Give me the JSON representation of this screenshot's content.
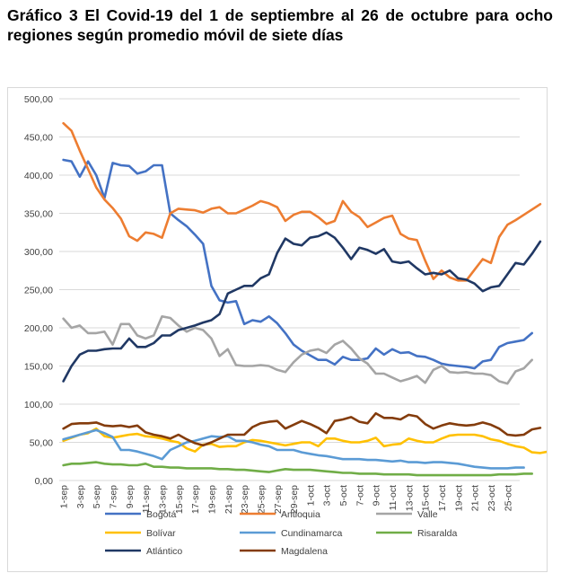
{
  "title": "Gráfico 3 El Covid-19 del 1 de septiembre al 26 de octubre para ocho regiones según promedio móvil de siete días",
  "chart_data": {
    "type": "line",
    "ylim": [
      0,
      500
    ],
    "yticks": [
      "0,00",
      "50,00",
      "100,00",
      "150,00",
      "200,00",
      "250,00",
      "300,00",
      "350,00",
      "400,00",
      "450,00",
      "500,00"
    ],
    "grid": true,
    "legend_position": "bottom",
    "xtick_labels": [
      "1-sep",
      "3-sep",
      "5-sep",
      "7-sep",
      "9-sep",
      "11-sep",
      "13-sep",
      "15-sep",
      "17-sep",
      "19-sep",
      "21-sep",
      "23-sep",
      "25-sep",
      "27-sep",
      "29-sep",
      "1-oct",
      "3-oct",
      "5-oct",
      "7-oct",
      "9-oct",
      "11-oct",
      "13-oct",
      "15-oct",
      "17-oct",
      "19-oct",
      "21-oct",
      "23-oct",
      "25-oct"
    ],
    "series": [
      {
        "name": "Bogotá",
        "color": "#4472c4",
        "values": [
          420,
          418,
          398,
          418,
          400,
          370,
          416,
          413,
          412,
          402,
          405,
          413,
          413,
          350,
          341,
          333,
          322,
          310,
          255,
          236,
          233,
          235,
          205,
          210,
          208,
          215,
          206,
          193,
          178,
          170,
          164,
          158,
          158,
          152,
          162,
          158,
          158,
          160,
          173,
          165,
          172,
          167,
          168,
          163,
          162,
          158,
          153,
          151,
          150,
          149,
          147,
          156,
          158,
          175,
          180,
          182,
          184,
          193
        ]
      },
      {
        "name": "Antioquia",
        "color": "#ed7d31",
        "values": [
          468,
          458,
          432,
          408,
          384,
          368,
          357,
          343,
          320,
          314,
          325,
          323,
          318,
          350,
          356,
          355,
          354,
          351,
          356,
          358,
          350,
          350,
          355,
          360,
          366,
          363,
          358,
          340,
          348,
          352,
          352,
          345,
          336,
          340,
          366,
          352,
          345,
          332,
          338,
          344,
          347,
          323,
          317,
          315,
          288,
          264,
          275,
          266,
          262,
          262,
          276,
          290,
          285,
          319,
          335,
          341,
          348,
          355,
          362
        ]
      },
      {
        "name": "Valle",
        "color": "#a5a5a5",
        "values": [
          212,
          200,
          203,
          193,
          193,
          195,
          178,
          205,
          205,
          190,
          186,
          190,
          215,
          213,
          203,
          195,
          200,
          197,
          186,
          163,
          172,
          151,
          150,
          150,
          151,
          150,
          145,
          142,
          155,
          165,
          170,
          172,
          167,
          178,
          183,
          173,
          160,
          153,
          140,
          140,
          135,
          130,
          133,
          137,
          128,
          145,
          150,
          142,
          141,
          142,
          140,
          140,
          138,
          130,
          127,
          143,
          147,
          158
        ]
      },
      {
        "name": "Bolívar",
        "color": "#ffc000",
        "values": [
          52,
          56,
          60,
          62,
          68,
          58,
          56,
          58,
          60,
          61,
          58,
          57,
          55,
          52,
          50,
          42,
          38,
          47,
          48,
          44,
          45,
          45,
          50,
          53,
          52,
          50,
          48,
          46,
          48,
          50,
          50,
          45,
          55,
          55,
          52,
          50,
          50,
          52,
          56,
          45,
          47,
          48,
          55,
          52,
          50,
          50,
          55,
          59,
          60,
          60,
          60,
          58,
          54,
          52,
          48,
          45,
          43,
          37,
          36,
          38
        ]
      },
      {
        "name": "Cundinamarca",
        "color": "#5b9bd5",
        "values": [
          54,
          57,
          60,
          63,
          66,
          62,
          57,
          40,
          40,
          38,
          35,
          32,
          28,
          40,
          45,
          50,
          52,
          55,
          58,
          57,
          58,
          52,
          52,
          50,
          47,
          45,
          40,
          40,
          40,
          37,
          35,
          33,
          32,
          30,
          28,
          28,
          28,
          27,
          27,
          26,
          25,
          26,
          24,
          24,
          23,
          24,
          24,
          23,
          22,
          20,
          18,
          17,
          16,
          16,
          16,
          17,
          17
        ]
      },
      {
        "name": "Risaralda",
        "color": "#70ad47",
        "values": [
          20,
          22,
          22,
          23,
          24,
          22,
          21,
          21,
          20,
          20,
          22,
          18,
          18,
          17,
          17,
          16,
          16,
          16,
          16,
          15,
          15,
          14,
          14,
          13,
          12,
          11,
          13,
          15,
          14,
          14,
          14,
          13,
          12,
          11,
          10,
          10,
          9,
          9,
          9,
          8,
          8,
          8,
          8,
          7,
          7,
          7,
          7,
          7,
          7,
          7,
          7,
          7,
          7,
          8,
          8,
          8,
          9,
          9
        ]
      },
      {
        "name": "Atlántico",
        "color": "#203864",
        "values": [
          130,
          150,
          165,
          170,
          170,
          172,
          173,
          173,
          186,
          175,
          175,
          180,
          190,
          190,
          197,
          200,
          203,
          207,
          210,
          218,
          245,
          250,
          255,
          255,
          265,
          270,
          298,
          317,
          310,
          308,
          318,
          320,
          325,
          318,
          305,
          290,
          305,
          302,
          297,
          303,
          287,
          285,
          287,
          278,
          270,
          272,
          270,
          275,
          265,
          263,
          258,
          248,
          253,
          255,
          270,
          285,
          283,
          297,
          313
        ]
      },
      {
        "name": "Magdalena",
        "color": "#843c0c",
        "values": [
          68,
          74,
          75,
          75,
          76,
          72,
          71,
          72,
          70,
          72,
          63,
          60,
          58,
          55,
          60,
          54,
          49,
          46,
          50,
          55,
          60,
          60,
          60,
          70,
          75,
          77,
          78,
          68,
          73,
          78,
          74,
          69,
          62,
          78,
          80,
          83,
          77,
          75,
          88,
          82,
          82,
          80,
          86,
          84,
          74,
          68,
          72,
          75,
          73,
          72,
          73,
          76,
          73,
          68,
          60,
          59,
          60,
          67,
          69
        ]
      }
    ]
  }
}
